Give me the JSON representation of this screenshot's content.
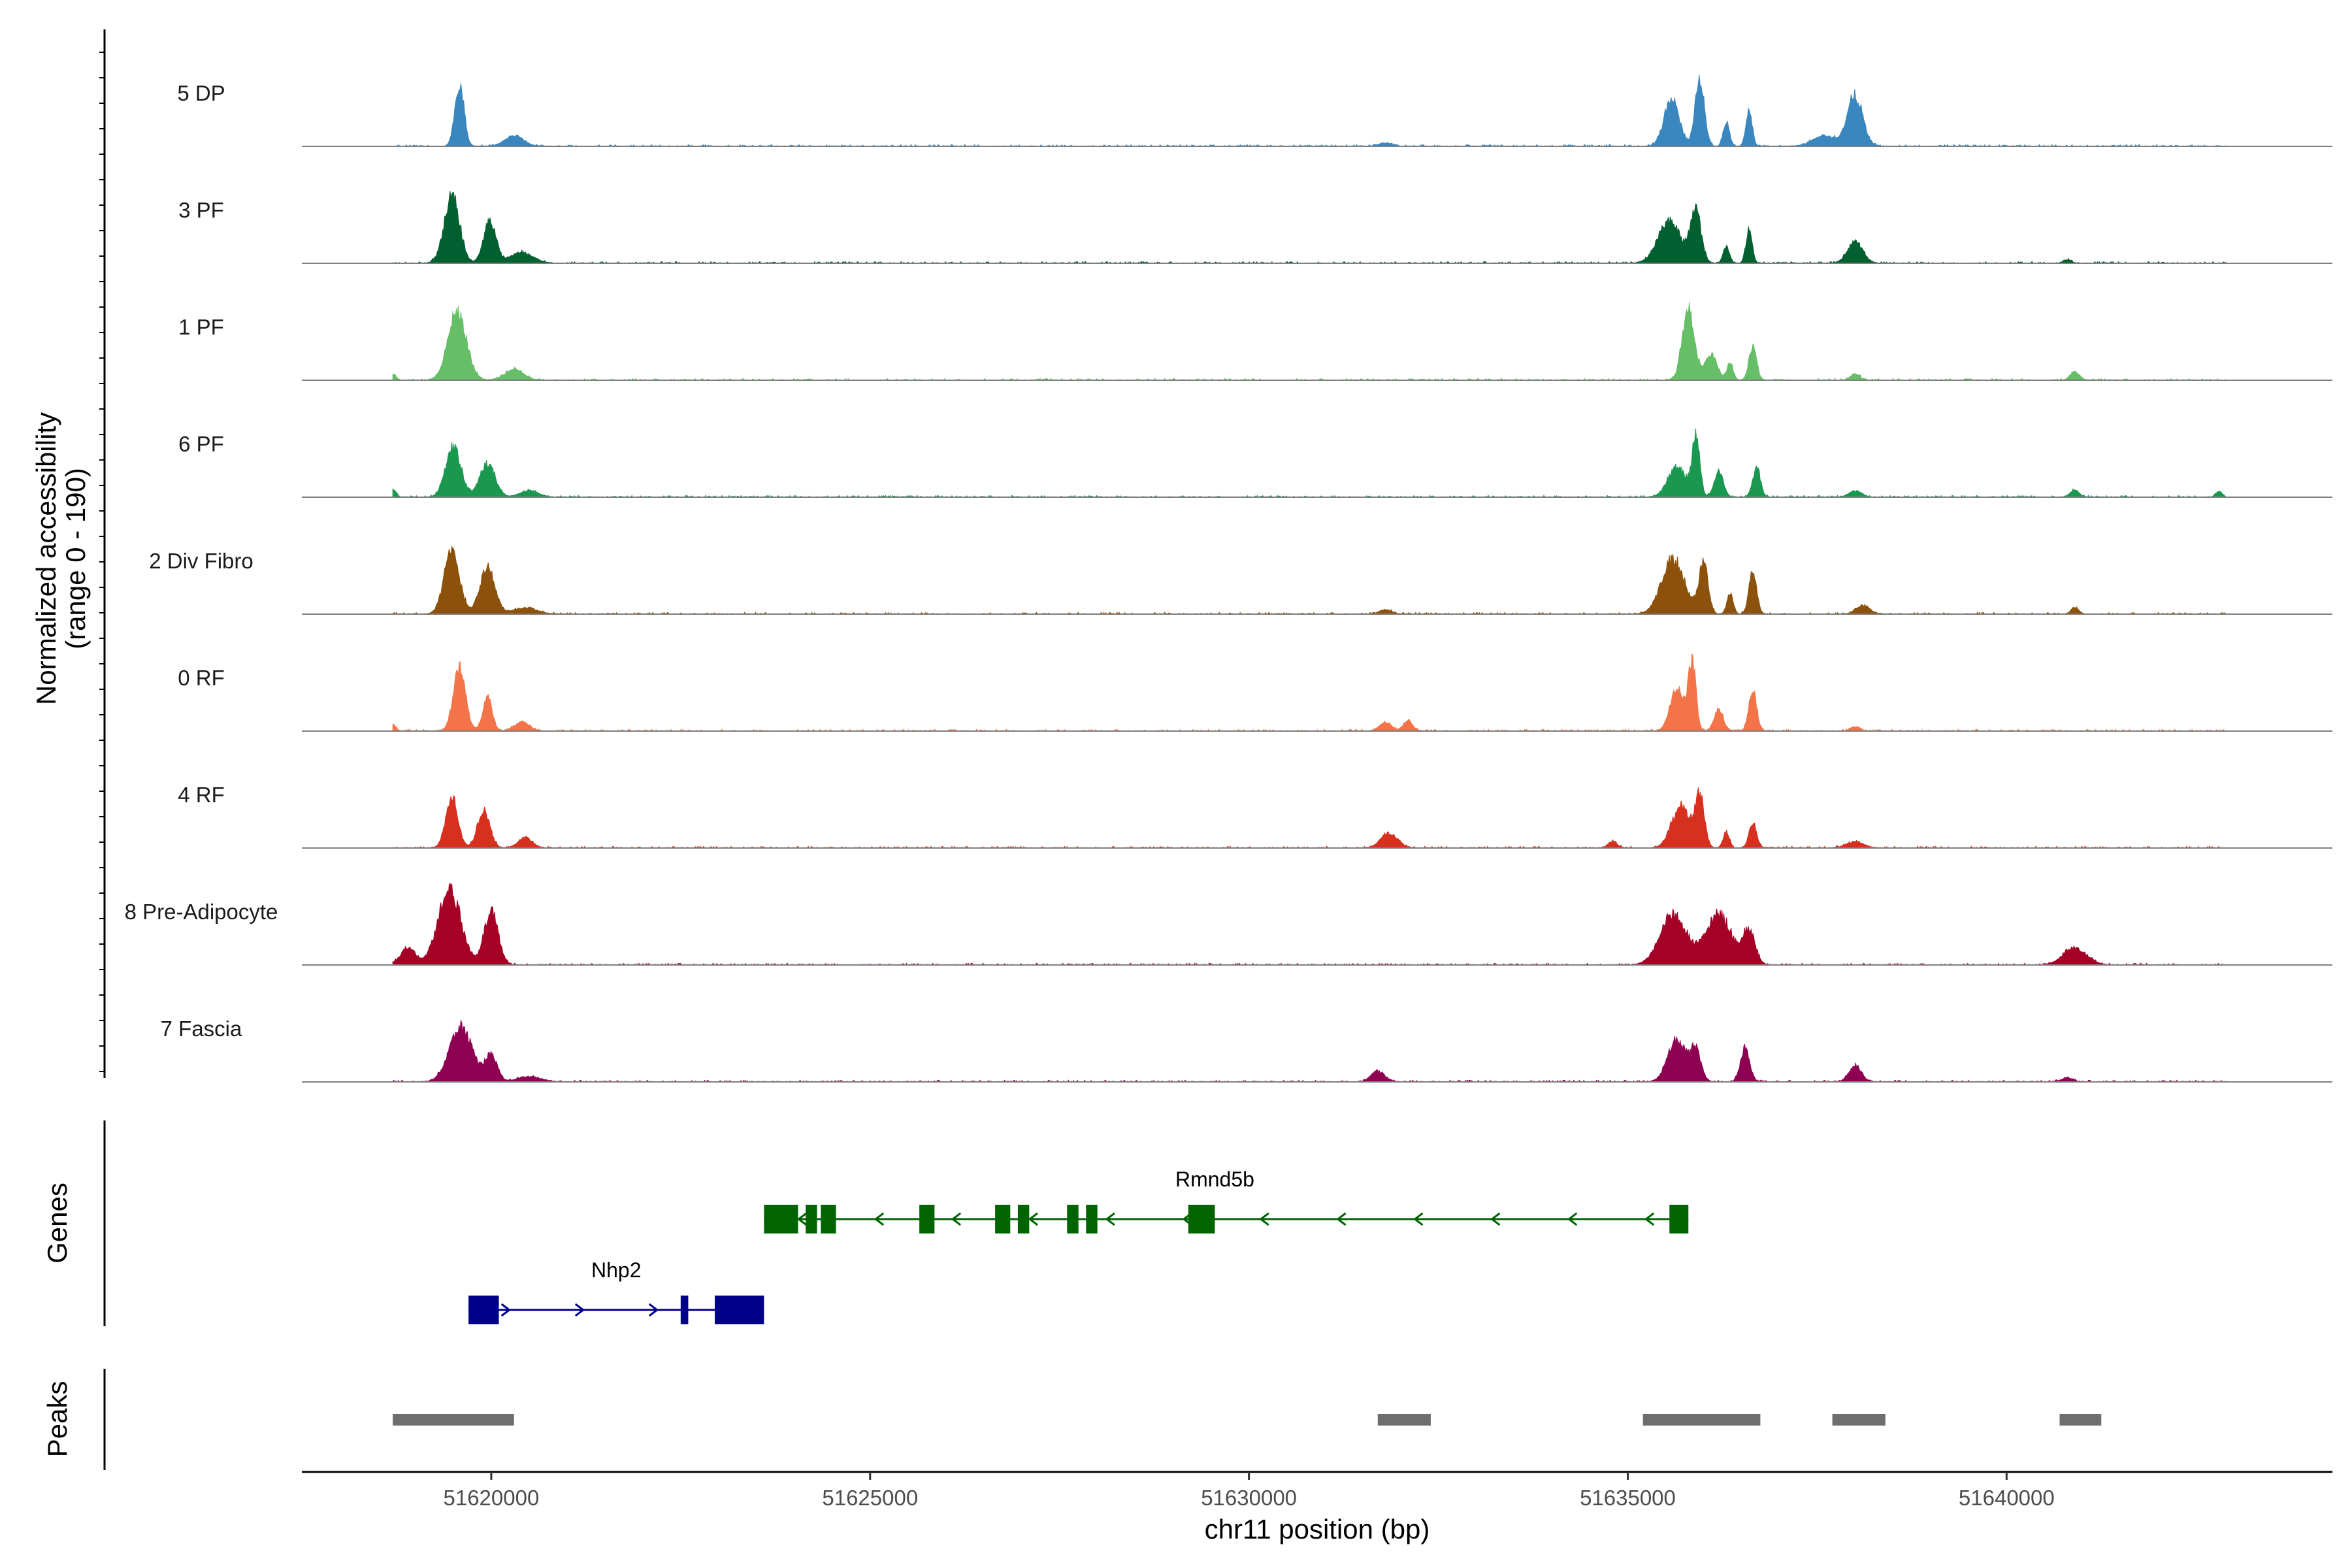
{
  "chart_data": {
    "type": "area",
    "title": "",
    "chromosome": "chr11",
    "xlabel": "chr11 position (bp)",
    "ylabel": "Normalized accessibility",
    "ylabel_range": "(range 0 - 190)",
    "xlim": [
      51617500,
      51644300
    ],
    "x_ticks": [
      51620000,
      51625000,
      51630000,
      51635000,
      51640000
    ],
    "x_tick_labels": [
      "51620000",
      "51625000",
      "51630000",
      "51635000",
      "51640000"
    ],
    "ylim": [
      0,
      190
    ],
    "coverage_range_bp": [
      51618700,
      51642900
    ],
    "tracks": [
      {
        "name": "5 DP",
        "color": "#3a87c0",
        "peaks": [
          [
            51619580,
            150,
            60
          ],
          [
            51620300,
            25,
            120
          ],
          [
            51631800,
            8,
            80
          ],
          [
            51635580,
            110,
            100
          ],
          [
            51635950,
            160,
            60
          ],
          [
            51636300,
            60,
            40
          ],
          [
            51636600,
            90,
            40
          ],
          [
            51638000,
            120,
            100
          ],
          [
            51637600,
            25,
            150
          ]
        ]
      },
      {
        "name": "3 PF",
        "color": "#006030",
        "peaks": [
          [
            51619480,
            160,
            100
          ],
          [
            51619980,
            100,
            80
          ],
          [
            51620400,
            25,
            150
          ],
          [
            51635550,
            100,
            150
          ],
          [
            51635900,
            120,
            70
          ],
          [
            51636300,
            40,
            40
          ],
          [
            51636600,
            80,
            40
          ],
          [
            51638000,
            50,
            100
          ],
          [
            51640800,
            8,
            50
          ]
        ]
      },
      {
        "name": "1 PF",
        "color": "#66be66",
        "peaks": [
          [
            51619550,
            165,
            120
          ],
          [
            51620300,
            25,
            120
          ],
          [
            51618700,
            15,
            40
          ],
          [
            51635800,
            170,
            80
          ],
          [
            51636100,
            60,
            80
          ],
          [
            51636350,
            40,
            40
          ],
          [
            51636650,
            80,
            50
          ],
          [
            51638000,
            15,
            60
          ],
          [
            51640900,
            20,
            60
          ]
        ]
      },
      {
        "name": "6 PF",
        "color": "#1a9850",
        "peaks": [
          [
            51619500,
            120,
            100
          ],
          [
            51619950,
            80,
            100
          ],
          [
            51620500,
            15,
            120
          ],
          [
            51618700,
            20,
            40
          ],
          [
            51635650,
            70,
            120
          ],
          [
            51635900,
            140,
            50
          ],
          [
            51636200,
            60,
            60
          ],
          [
            51636700,
            70,
            50
          ],
          [
            51638000,
            15,
            80
          ],
          [
            51640900,
            15,
            60
          ],
          [
            51642800,
            15,
            40
          ]
        ]
      },
      {
        "name": "2 Div Fibro",
        "color": "#8c510a",
        "peaks": [
          [
            51619480,
            150,
            100
          ],
          [
            51619950,
            110,
            100
          ],
          [
            51620450,
            15,
            150
          ],
          [
            51631800,
            10,
            80
          ],
          [
            51635600,
            130,
            150
          ],
          [
            51636000,
            120,
            60
          ],
          [
            51636350,
            50,
            40
          ],
          [
            51636650,
            100,
            50
          ],
          [
            51638100,
            20,
            90
          ],
          [
            51640900,
            15,
            50
          ]
        ]
      },
      {
        "name": "0 RF",
        "color": "#f4744a",
        "peaks": [
          [
            51619580,
            150,
            80
          ],
          [
            51619950,
            80,
            60
          ],
          [
            51620400,
            20,
            100
          ],
          [
            51618700,
            15,
            40
          ],
          [
            51631800,
            20,
            80
          ],
          [
            51632100,
            25,
            60
          ],
          [
            51635650,
            100,
            90
          ],
          [
            51635850,
            160,
            50
          ],
          [
            51636200,
            50,
            60
          ],
          [
            51636650,
            100,
            50
          ],
          [
            51638000,
            10,
            60
          ]
        ]
      },
      {
        "name": "4 RF",
        "color": "#d7301f",
        "peaks": [
          [
            51619480,
            120,
            80
          ],
          [
            51619900,
            90,
            80
          ],
          [
            51620450,
            25,
            90
          ],
          [
            51631850,
            35,
            110
          ],
          [
            51634800,
            15,
            60
          ],
          [
            51635700,
            100,
            120
          ],
          [
            51635950,
            120,
            60
          ],
          [
            51636300,
            40,
            40
          ],
          [
            51636650,
            60,
            50
          ],
          [
            51638000,
            15,
            110
          ]
        ]
      },
      {
        "name": "8 Pre-Adipocyte",
        "color": "#a50026",
        "peaks": [
          [
            51619450,
            180,
            150
          ],
          [
            51620000,
            130,
            90
          ],
          [
            51618900,
            40,
            100
          ],
          [
            51635600,
            120,
            170
          ],
          [
            51636200,
            120,
            170
          ],
          [
            51636600,
            80,
            80
          ],
          [
            51640900,
            40,
            150
          ]
        ]
      },
      {
        "name": "7 Fascia",
        "color": "#8e0152",
        "peaks": [
          [
            51619600,
            130,
            150
          ],
          [
            51620000,
            60,
            80
          ],
          [
            51620500,
            12,
            150
          ],
          [
            51631700,
            25,
            90
          ],
          [
            51635650,
            100,
            120
          ],
          [
            51635900,
            70,
            70
          ],
          [
            51636550,
            80,
            60
          ],
          [
            51638000,
            40,
            80
          ],
          [
            51640800,
            8,
            80
          ]
        ]
      }
    ],
    "genes": [
      {
        "name": "Rmnd5b",
        "strand": "-",
        "color": "#006400",
        "start": 51623600,
        "end": 51635800,
        "exons": [
          [
            51623600,
            51624050
          ],
          [
            51624150,
            51624300
          ],
          [
            51624350,
            51624550
          ],
          [
            51625650,
            51625850
          ],
          [
            51626650,
            51626850
          ],
          [
            51626950,
            51627100
          ],
          [
            51627600,
            51627750
          ],
          [
            51627850,
            51628000
          ],
          [
            51629200,
            51629550
          ],
          [
            51635550,
            51635800
          ]
        ]
      },
      {
        "name": "Nhp2",
        "strand": "+",
        "color": "#00008b",
        "start": 51619700,
        "end": 51623600,
        "exons": [
          [
            51619700,
            51620100
          ],
          [
            51622500,
            51622600
          ],
          [
            51622950,
            51623600
          ]
        ]
      }
    ],
    "peaks": [
      [
        51618700,
        51620300
      ],
      [
        51631700,
        51632400
      ],
      [
        51635200,
        51636750
      ],
      [
        51637700,
        51638400
      ],
      [
        51640700,
        51641250
      ]
    ],
    "panel_labels": {
      "genes": "Genes",
      "peaks": "Peaks"
    }
  }
}
